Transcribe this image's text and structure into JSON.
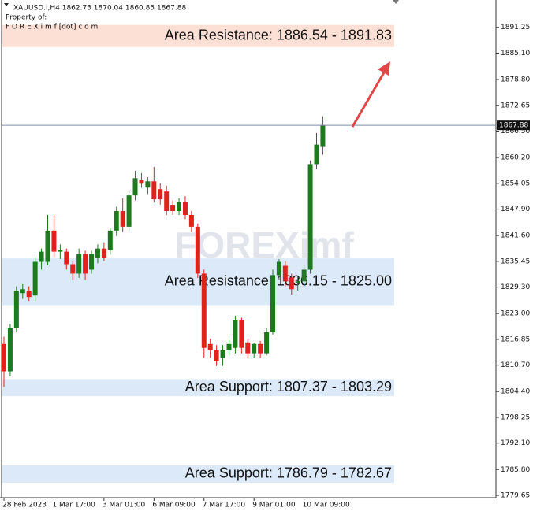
{
  "chart_data": {
    "type": "candlestick",
    "symbol_header": "XAUUSD.i,H4  1862.73 1870.04 1860.85 1867.88",
    "owner_line": "Property of:",
    "owner_site": "F O R E X i m f [dot] c o m",
    "watermark": "FOREXimf",
    "categories": [
      "28 Feb 2023",
      null,
      null,
      null,
      null,
      null,
      null,
      null,
      "1 Mar 17:00",
      null,
      null,
      null,
      null,
      null,
      null,
      null,
      "3 Mar 01:00",
      null,
      null,
      null,
      null,
      null,
      null,
      null,
      "6 Mar 09:00",
      null,
      null,
      null,
      null,
      null,
      null,
      null,
      "7 Mar 17:00",
      null,
      null,
      null,
      null,
      null,
      null,
      null,
      "9 Mar 01:00",
      null,
      null,
      null,
      null,
      null,
      null,
      null,
      "10 Mar 09:00",
      null,
      null,
      null
    ],
    "open": [
      1815.75,
      1809.23,
      1819.48,
      1827.87,
      1828.43,
      1827.31,
      1835.33,
      1835.33,
      1842.78,
      1837.75,
      1837.75,
      1834.77,
      1832.53,
      1837.19,
      1833.46,
      1836.26,
      1838.49,
      1838.12,
      1842.78,
      1847.44,
      1843.71,
      1851.17,
      1854.9,
      1853.03,
      1854.53,
      1852.66,
      1852.1,
      1848.93,
      1847.44,
      1849.68,
      1846.51,
      1843.71,
      1832.53,
      1815.75,
      1814.26,
      1812.4,
      1814.26,
      1814.82,
      1821.35,
      1816.13,
      1813.52,
      1815.75,
      1813.52,
      1818.55,
      1832.16,
      1834.39,
      1831.6,
      1830.29,
      1830.67,
      1833.46,
      1858.63,
      1862.73
    ],
    "high": [
      1817.5,
      1820.5,
      1829.5,
      1830.0,
      1829.5,
      1836.5,
      1838.5,
      1846.5,
      1846.5,
      1839.5,
      1838.5,
      1835.5,
      1838.5,
      1838.0,
      1838.0,
      1839.5,
      1840.0,
      1843.5,
      1848.5,
      1850.5,
      1852.5,
      1857.0,
      1856.5,
      1855.5,
      1858.0,
      1854.0,
      1853.5,
      1850.0,
      1850.5,
      1851.0,
      1847.5,
      1844.5,
      1833.5,
      1817.0,
      1815.5,
      1815.5,
      1817.0,
      1822.5,
      1822.0,
      1817.0,
      1816.0,
      1816.5,
      1819.5,
      1833.5,
      1836.0,
      1835.5,
      1832.5,
      1832.0,
      1834.5,
      1859.5,
      1866.0,
      1870.04
    ],
    "low": [
      1805.5,
      1808.0,
      1818.5,
      1826.5,
      1826.0,
      1826.0,
      1833.5,
      1834.5,
      1836.5,
      1836.0,
      1833.5,
      1831.0,
      1831.5,
      1831.0,
      1832.5,
      1835.0,
      1835.5,
      1837.0,
      1841.5,
      1842.5,
      1842.5,
      1850.0,
      1853.0,
      1851.5,
      1849.5,
      1849.0,
      1846.5,
      1846.5,
      1846.5,
      1845.5,
      1842.5,
      1831.5,
      1812.5,
      1812.5,
      1810.5,
      1810.5,
      1813.0,
      1813.5,
      1813.5,
      1812.5,
      1812.5,
      1812.5,
      1813.0,
      1818.0,
      1831.0,
      1829.5,
      1827.5,
      1828.5,
      1829.5,
      1832.5,
      1857.5,
      1860.85
    ],
    "close": [
      1809.23,
      1819.48,
      1828.43,
      1828.8,
      1826.94,
      1835.33,
      1837.75,
      1842.78,
      1837.75,
      1838.12,
      1834.77,
      1832.53,
      1837.19,
      1832.53,
      1837.19,
      1838.49,
      1836.26,
      1842.78,
      1847.44,
      1843.71,
      1851.17,
      1855.27,
      1853.97,
      1854.53,
      1850.24,
      1850.24,
      1847.44,
      1847.44,
      1849.68,
      1846.51,
      1843.71,
      1832.53,
      1814.82,
      1814.26,
      1811.65,
      1814.26,
      1815.75,
      1821.35,
      1814.82,
      1813.52,
      1815.75,
      1813.52,
      1818.55,
      1832.16,
      1835.33,
      1830.67,
      1828.8,
      1830.67,
      1833.46,
      1858.63,
      1863.29,
      1867.88
    ],
    "up_color": "#1d7a1d",
    "down_color": "#e0221f",
    "current_price": 1867.88,
    "zones": [
      {
        "label": "Area Resistance: 1886.54 - 1891.83",
        "low": 1886.54,
        "high": 1891.83,
        "color": "#fde0d5"
      },
      {
        "label": "Area Resistance: 1836.15 - 1825.00",
        "low": 1825.0,
        "high": 1836.15,
        "color": "#dbe9f8"
      },
      {
        "label": "Area Support: 1807.37 - 1803.29",
        "low": 1803.29,
        "high": 1807.37,
        "color": "#dbe9f8"
      },
      {
        "label": "Area Support: 1786.79 - 1782.67",
        "low": 1782.67,
        "high": 1786.79,
        "color": "#dbe9f8"
      }
    ],
    "ylim": [
      1779.09,
      1897.77
    ],
    "yticks": [
      1891.25,
      {
        "value": 1885.1,
        "label": "1885.10"
      },
      {
        "value": 1878.8,
        "label": "1878.80"
      },
      1872.65,
      {
        "value": 1866.5,
        "label": "1866.50"
      },
      {
        "value": 1860.2,
        "label": "1860.20"
      },
      1854.05,
      {
        "value": 1847.9,
        "label": "1847.90"
      },
      {
        "value": 1841.6,
        "label": "1841.60"
      },
      1835.45,
      {
        "value": 1829.3,
        "label": "1829.30"
      },
      {
        "value": 1823,
        "label": "1823.00"
      },
      1816.85,
      {
        "value": 1810.7,
        "label": "1810.70"
      },
      {
        "value": 1804.4,
        "label": "1804.40"
      },
      1798.25,
      {
        "value": 1792.1,
        "label": "1792.10"
      },
      {
        "value": 1785.8,
        "label": "1785.80"
      },
      1779.65
    ]
  }
}
